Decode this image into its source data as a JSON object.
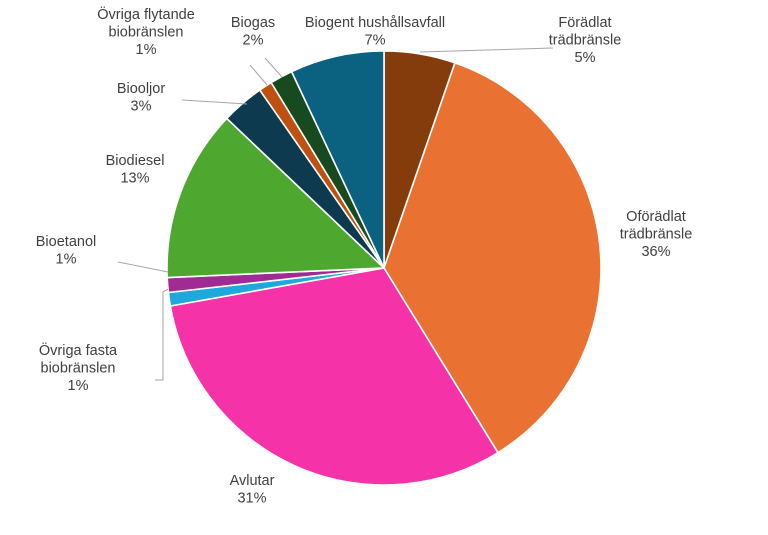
{
  "chart_data": {
    "type": "pie",
    "title": "",
    "start_angle_deg": 0,
    "direction": "clockwise",
    "slices": [
      {
        "name": "Förädlat trädbränsle",
        "lines": [
          "Förädlat",
          "trädbränsle"
        ],
        "pct_label": "5%",
        "value": 5.3,
        "color": "#843C0C"
      },
      {
        "name": "Oförädlat trädbränsle",
        "lines": [
          "Oförädlat",
          "trädbränsle"
        ],
        "pct_label": "36%",
        "value": 35.9,
        "color": "#E97132"
      },
      {
        "name": "Avlutar",
        "lines": [
          "Avlutar"
        ],
        "pct_label": "31%",
        "value": 31.0,
        "color": "#F532A7"
      },
      {
        "name": "Övriga fasta biobränslen",
        "lines": [
          "Övriga fasta",
          "biobränslen"
        ],
        "pct_label": "1%",
        "value": 1.0,
        "color": "#1FA8DC"
      },
      {
        "name": "Bioetanol",
        "lines": [
          "Bioetanol"
        ],
        "pct_label": "1%",
        "value": 1.1,
        "color": "#A02B93"
      },
      {
        "name": "Biodiesel",
        "lines": [
          "Biodiesel"
        ],
        "pct_label": "13%",
        "value": 12.8,
        "color": "#4EA72E"
      },
      {
        "name": "Biooljor",
        "lines": [
          "Biooljor"
        ],
        "pct_label": "3%",
        "value": 3.2,
        "color": "#0E3A50"
      },
      {
        "name": "Övriga flytande biobränslen",
        "lines": [
          "Övriga flytande",
          "biobränslen"
        ],
        "pct_label": "1%",
        "value": 1.0,
        "color": "#C0500F"
      },
      {
        "name": "Biogas",
        "lines": [
          "Biogas"
        ],
        "pct_label": "2%",
        "value": 1.7,
        "color": "#174A1E"
      },
      {
        "name": "Biogent hushållsavfall",
        "lines": [
          "Biogent hushållsavfall"
        ],
        "pct_label": "7%",
        "value": 7.0,
        "color": "#0B6180"
      }
    ]
  }
}
